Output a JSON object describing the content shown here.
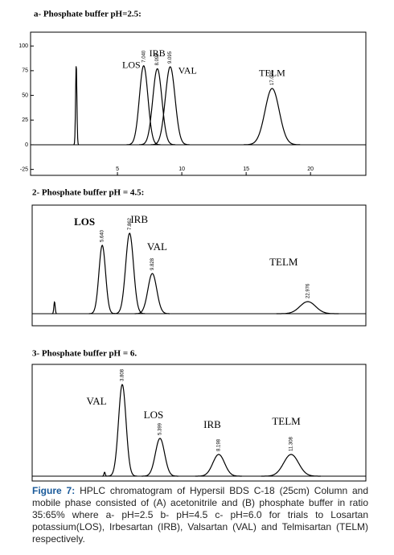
{
  "chart_data": [
    {
      "type": "chromatogram",
      "title": "a- Phosphate buffer pH=2.5:",
      "xlim": [
        -1.75,
        24.3
      ],
      "xticks": [
        5,
        10,
        15,
        20
      ],
      "ylim": [
        -31,
        114
      ],
      "yticks": [
        -25,
        0,
        25,
        50,
        75,
        100
      ],
      "peaks": [
        {
          "x": 1.8,
          "height": 82
        },
        {
          "name": "LOS",
          "rt_label": "7.040",
          "x": 7.04,
          "height": 80
        },
        {
          "name": "IRB",
          "rt_label": "8.098",
          "x": 8.1,
          "height": 77
        },
        {
          "name": "VAL",
          "rt_label": "9.095",
          "x": 9.1,
          "height": 79
        },
        {
          "name": "TELM",
          "rt_label": "17.021",
          "x": 17.02,
          "height": 57
        }
      ]
    },
    {
      "type": "chromatogram",
      "title": "2- Phosphate buffer pH = 4.5:",
      "xlim": [
        0,
        100
      ],
      "ylim": [
        -15,
        135
      ],
      "peaks": [
        {
          "x": 6.7,
          "height": 15
        },
        {
          "name": "LOS",
          "rt_label": "5.640",
          "x": 21,
          "height": 85
        },
        {
          "name": "IRB",
          "rt_label": "7.862",
          "x": 29.2,
          "height": 100
        },
        {
          "name": "VAL",
          "rt_label": "9.828",
          "x": 36,
          "height": 50
        },
        {
          "name": "TELM",
          "rt_label": "22.976",
          "x": 82.6,
          "height": 15
        }
      ]
    },
    {
      "type": "chromatogram",
      "title": "3- Phosphate buffer pH = 6.",
      "xlim": [
        0,
        100
      ],
      "ylim": [
        -6,
        139
      ],
      "peaks": [
        {
          "x": 21.7,
          "height": 5
        },
        {
          "name": "VAL",
          "rt_label": "3.808",
          "x": 27,
          "height": 114
        },
        {
          "name": "LOS",
          "rt_label": "5.399",
          "x": 38.3,
          "height": 47
        },
        {
          "name": "IRB",
          "rt_label": "8.198",
          "x": 55.9,
          "height": 27
        },
        {
          "name": "TELM",
          "rt_label": "11.308",
          "x": 77.6,
          "height": 27
        }
      ]
    }
  ],
  "caption": {
    "label": "Figure 7:",
    "text": "HPLC chromatogram of Hypersil BDS C-18 (25cm) Column and mobile phase consisted of (A) acetonitrile and (B) phosphate buffer in ratio 35:65% where a- pH=2.5 b- pH=4.5  c- pH=6.0  for trials to Losartan potassium(LOS), Irbesartan (IRB), Valsartan (VAL) and Telmisartan (TELM) respectively."
  }
}
